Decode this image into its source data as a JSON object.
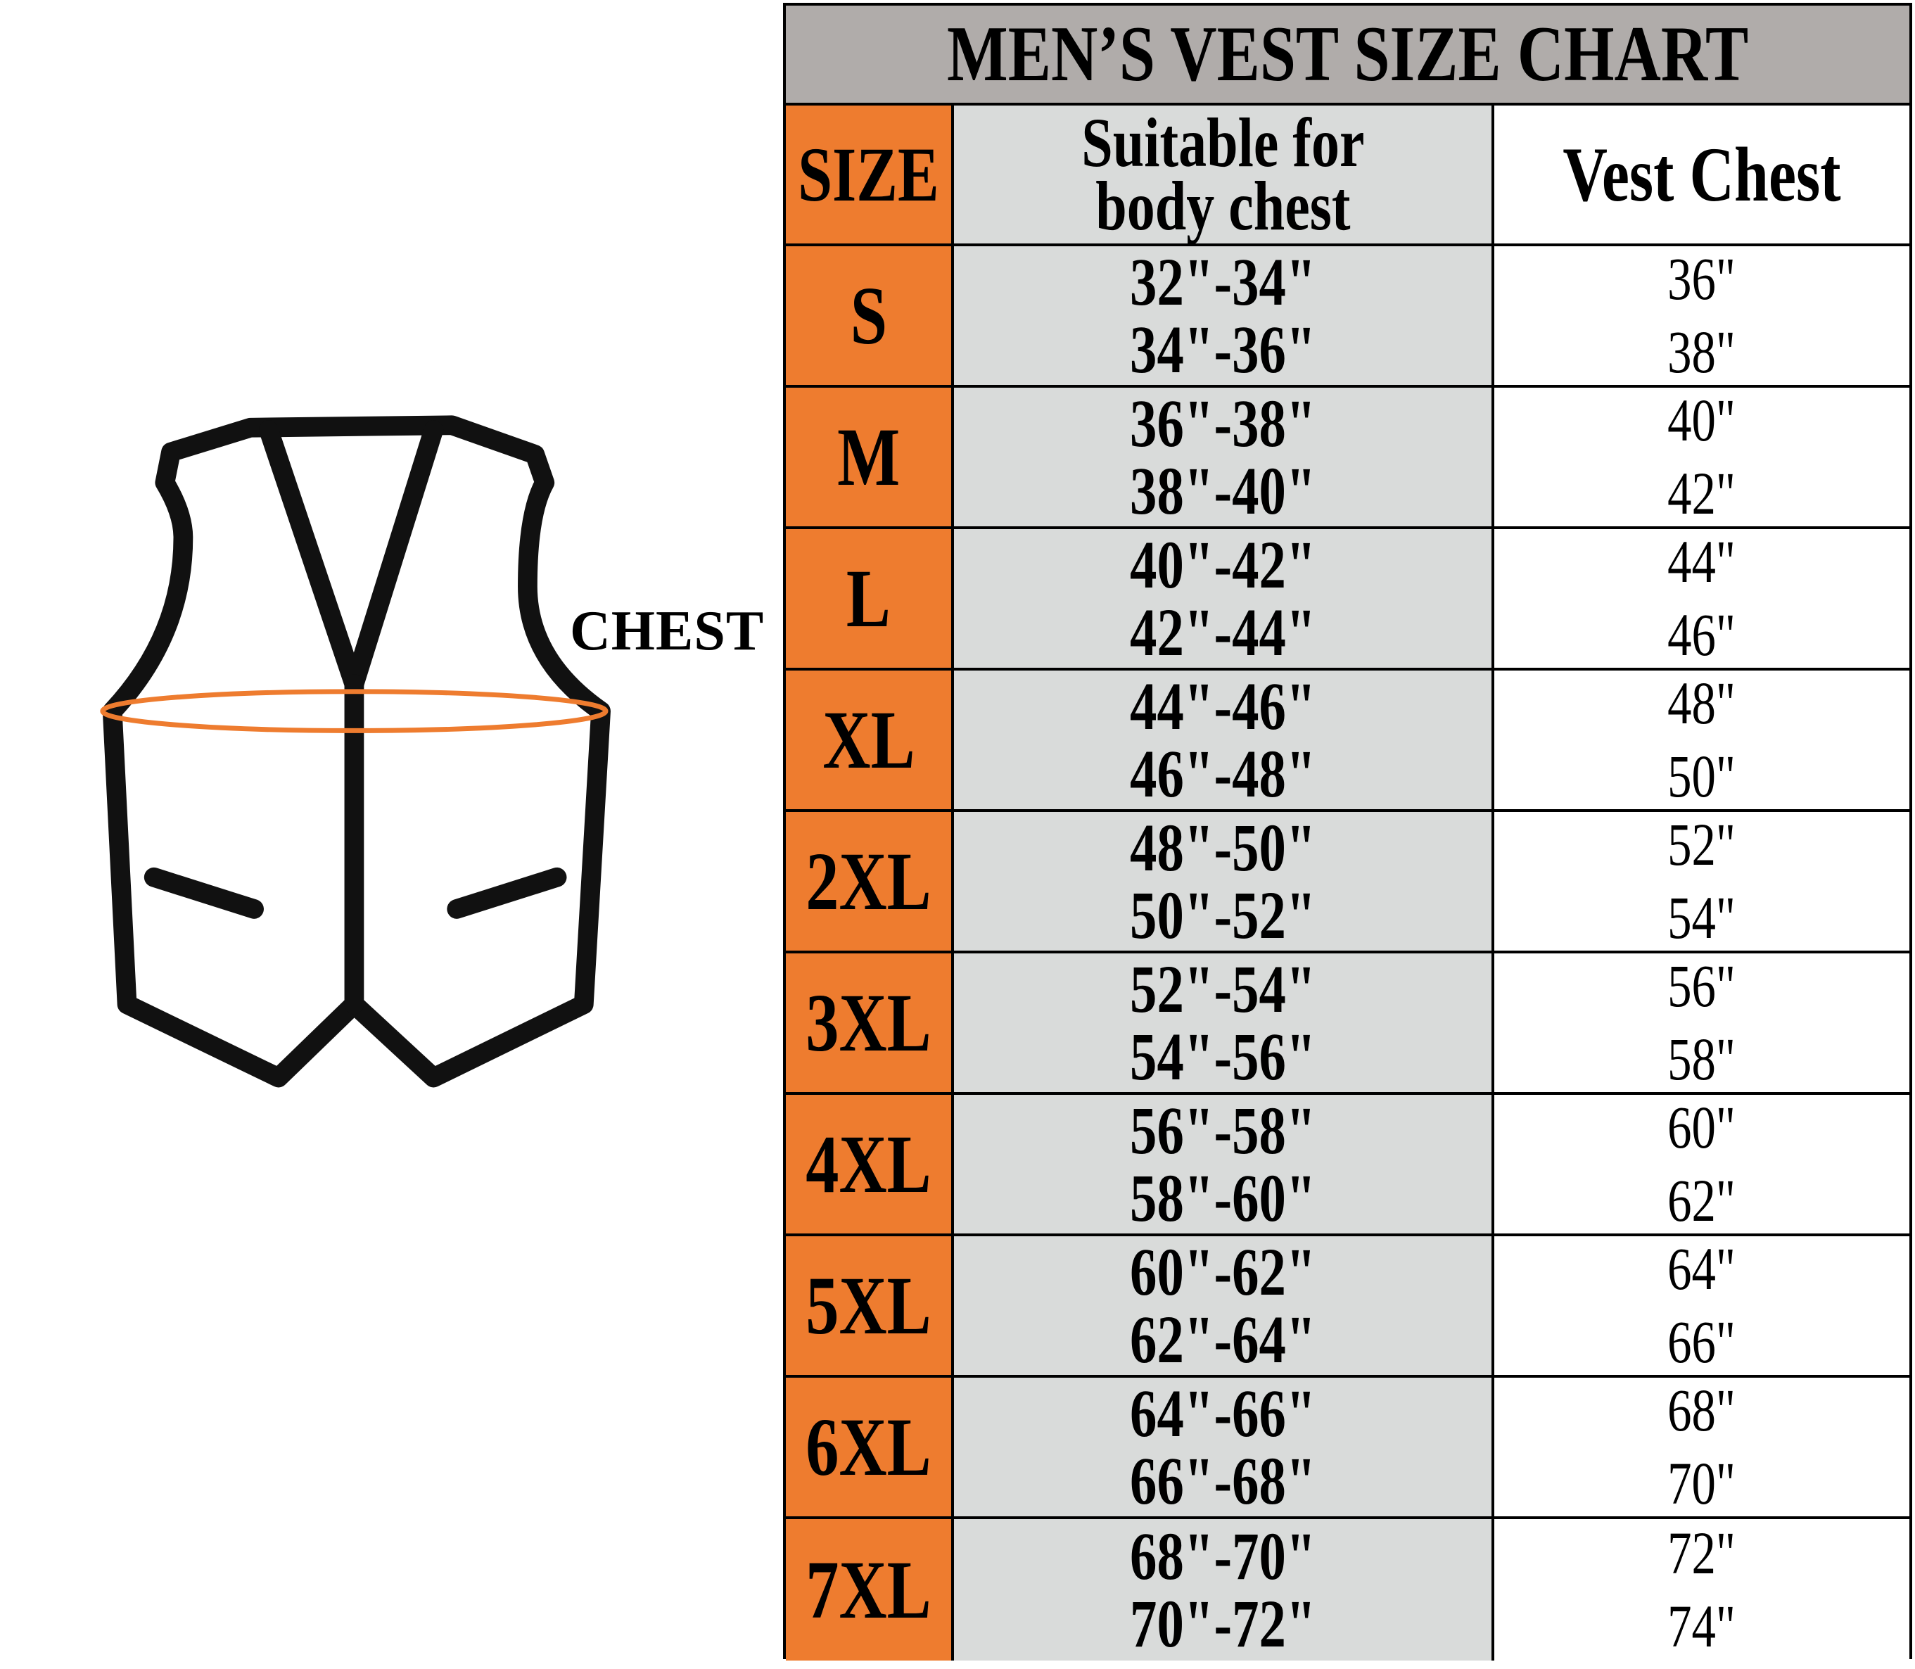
{
  "title": "MEN’S VEST SIZE CHART",
  "illustration": {
    "label": "CHEST",
    "measure_color": "#EE7C2F"
  },
  "colors": {
    "title_bg": "#B0ACAA",
    "size_col": "#EE7C2F",
    "body_col": "#D9DBDA",
    "vest_col": "#FFFFFF"
  },
  "headers": {
    "size": "SIZE",
    "body_line1": "Suitable for",
    "body_line2": "body chest",
    "vest": "Vest Chest"
  },
  "rows": [
    {
      "size": "S",
      "body": [
        "32\"-34\"",
        "34\"-36\""
      ],
      "vest": [
        "36\"",
        "38\""
      ]
    },
    {
      "size": "M",
      "body": [
        "36\"-38\"",
        "38\"-40\""
      ],
      "vest": [
        "40\"",
        "42\""
      ]
    },
    {
      "size": "L",
      "body": [
        "40\"-42\"",
        "42\"-44\""
      ],
      "vest": [
        "44\"",
        "46\""
      ]
    },
    {
      "size": "XL",
      "body": [
        "44\"-46\"",
        "46\"-48\""
      ],
      "vest": [
        "48\"",
        "50\""
      ]
    },
    {
      "size": "2XL",
      "body": [
        "48\"-50\"",
        "50\"-52\""
      ],
      "vest": [
        "52\"",
        "54\""
      ]
    },
    {
      "size": "3XL",
      "body": [
        "52\"-54\"",
        "54\"-56\""
      ],
      "vest": [
        "56\"",
        "58\""
      ]
    },
    {
      "size": "4XL",
      "body": [
        "56\"-58\"",
        "58\"-60\""
      ],
      "vest": [
        "60\"",
        "62\""
      ]
    },
    {
      "size": "5XL",
      "body": [
        "60\"-62\"",
        "62\"-64\""
      ],
      "vest": [
        "64\"",
        "66\""
      ]
    },
    {
      "size": "6XL",
      "body": [
        "64\"-66\"",
        "66\"-68\""
      ],
      "vest": [
        "68\"",
        "70\""
      ]
    },
    {
      "size": "7XL",
      "body": [
        "68\"-70\"",
        "70\"-72\""
      ],
      "vest": [
        "72\"",
        "74\""
      ]
    }
  ]
}
